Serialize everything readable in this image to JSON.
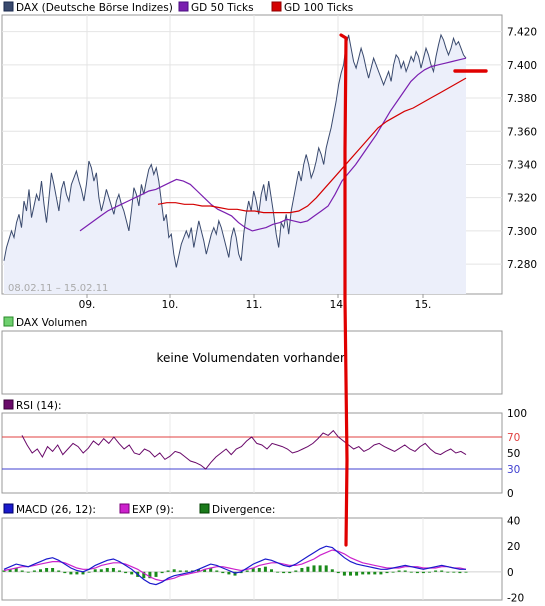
{
  "chart_data": [
    {
      "type": "line",
      "legend": [
        {
          "name": "DAX (Deutsche Börse Indizes)",
          "color": "#3a4a6e"
        },
        {
          "name": "GD 50 Ticks",
          "color": "#7a1fb0"
        },
        {
          "name": "GD 100 Ticks",
          "color": "#d40000"
        }
      ],
      "date_range": "08.02.11 – 15.02.11",
      "x_ticks": [
        "09.",
        "10.",
        "11.",
        "14.",
        "15."
      ],
      "y_ticks": [
        "7.420",
        "7.400",
        "7.380",
        "7.360",
        "7.340",
        "7.320",
        "7.300",
        "7.280"
      ],
      "ylim": [
        7262,
        7430
      ],
      "grid": true,
      "series": [
        {
          "name": "DAX (Deutsche Börse Indizes)",
          "values": [
            7282,
            7290,
            7295,
            7300,
            7296,
            7305,
            7310,
            7302,
            7318,
            7312,
            7325,
            7308,
            7315,
            7322,
            7318,
            7330,
            7316,
            7305,
            7320,
            7335,
            7328,
            7320,
            7312,
            7325,
            7330,
            7322,
            7318,
            7328,
            7332,
            7336,
            7330,
            7325,
            7318,
            7328,
            7342,
            7338,
            7330,
            7335,
            7320,
            7312,
            7318,
            7325,
            7320,
            7315,
            7310,
            7318,
            7322,
            7316,
            7312,
            7306,
            7300,
            7312,
            7326,
            7322,
            7315,
            7328,
            7322,
            7330,
            7337,
            7340,
            7334,
            7338,
            7330,
            7318,
            7306,
            7310,
            7296,
            7298,
            7286,
            7278,
            7285,
            7292,
            7296,
            7300,
            7296,
            7302,
            7290,
            7298,
            7306,
            7300,
            7294,
            7286,
            7292,
            7298,
            7302,
            7298,
            7306,
            7302,
            7296,
            7290,
            7284,
            7296,
            7302,
            7296,
            7286,
            7282,
            7298,
            7310,
            7318,
            7312,
            7324,
            7318,
            7310,
            7322,
            7328,
            7318,
            7330,
            7320,
            7310,
            7298,
            7290,
            7305,
            7302,
            7310,
            7298,
            7312,
            7320,
            7328,
            7336,
            7330,
            7340,
            7346,
            7340,
            7332,
            7336,
            7342,
            7350,
            7346,
            7340,
            7350,
            7356,
            7362,
            7370,
            7378,
            7388,
            7395,
            7400,
            7412,
            7418,
            7410,
            7402,
            7398,
            7404,
            7410,
            7405,
            7398,
            7392,
            7398,
            7404,
            7400,
            7396,
            7392,
            7388,
            7392,
            7396,
            7390,
            7400,
            7406,
            7404,
            7398,
            7402,
            7396,
            7400,
            7405,
            7402,
            7408,
            7405,
            7398,
            7404,
            7410,
            7406,
            7400,
            7396,
            7405,
            7412,
            7418,
            7415,
            7410,
            7406,
            7410,
            7416,
            7412,
            7414,
            7410,
            7406,
            7404
          ]
        },
        {
          "name": "GD 50 Ticks",
          "values": [
            7300,
            7303,
            7306,
            7309,
            7312,
            7314,
            7316,
            7318,
            7320,
            7322,
            7324,
            7325,
            7327,
            7329,
            7331,
            7330,
            7328,
            7324,
            7320,
            7316,
            7313,
            7311,
            7309,
            7305,
            7302,
            7300,
            7301,
            7302,
            7304,
            7305,
            7307,
            7306,
            7305,
            7306,
            7309,
            7312,
            7315,
            7322,
            7330,
            7335,
            7340,
            7346,
            7352,
            7358,
            7365,
            7372,
            7378,
            7384,
            7390,
            7394,
            7397,
            7399,
            7400,
            7401,
            7402,
            7403,
            7404
          ]
        },
        {
          "name": "GD 100 Ticks",
          "values": [
            7316,
            7317,
            7317,
            7316,
            7316,
            7315,
            7315,
            7314,
            7313,
            7313,
            7312,
            7312,
            7311,
            7311,
            7311,
            7311,
            7312,
            7315,
            7320,
            7326,
            7332,
            7338,
            7344,
            7350,
            7356,
            7362,
            7366,
            7369,
            7372,
            7374,
            7377,
            7380,
            7383,
            7386,
            7389,
            7392
          ]
        }
      ]
    },
    {
      "type": "bar",
      "legend": [
        {
          "name": "DAX Volumen",
          "color": "#3aa83a"
        }
      ],
      "message": "keine Volumendaten vorhanden"
    },
    {
      "type": "line",
      "legend": [
        {
          "name": "RSI (14):",
          "color": "#6a0a6a"
        }
      ],
      "y_ticks": [
        "100",
        "70",
        "50",
        "30",
        "0"
      ],
      "ylim": [
        0,
        100
      ],
      "levels": [
        70,
        30
      ],
      "series": [
        {
          "name": "RSI (14):",
          "values": [
            72,
            60,
            50,
            55,
            45,
            58,
            52,
            60,
            48,
            55,
            62,
            58,
            50,
            56,
            65,
            60,
            68,
            62,
            70,
            62,
            55,
            60,
            50,
            48,
            55,
            52,
            45,
            50,
            42,
            46,
            52,
            50,
            45,
            40,
            38,
            35,
            30,
            38,
            45,
            50,
            55,
            48,
            55,
            58,
            65,
            70,
            62,
            60,
            55,
            62,
            60,
            58,
            55,
            50,
            52,
            55,
            58,
            62,
            68,
            75,
            72,
            78,
            70,
            65,
            60,
            55,
            58,
            52,
            55,
            60,
            62,
            58,
            55,
            52,
            56,
            60,
            55,
            52,
            58,
            62,
            55,
            50,
            48,
            52,
            55,
            50,
            52,
            48
          ]
        }
      ]
    },
    {
      "type": "line",
      "legend": [
        {
          "name": "MACD (26, 12):",
          "color": "#1a1acc"
        },
        {
          "name": "EXP (9):",
          "color": "#cc22cc"
        },
        {
          "name": "Divergence:",
          "color": "#1a7a1a"
        }
      ],
      "y_ticks": [
        "40",
        "20",
        "0",
        "-20"
      ],
      "ylim": [
        -22,
        42
      ],
      "series": [
        {
          "name": "MACD (26, 12):",
          "values": [
            2,
            4,
            6,
            5,
            4,
            6,
            8,
            10,
            11,
            9,
            6,
            3,
            1,
            0,
            2,
            5,
            7,
            9,
            10,
            8,
            5,
            2,
            -2,
            -6,
            -9,
            -10,
            -8,
            -5,
            -3,
            -2,
            -1,
            0,
            2,
            4,
            6,
            5,
            3,
            1,
            -1,
            0,
            3,
            6,
            8,
            10,
            9,
            7,
            5,
            4,
            6,
            9,
            12,
            15,
            18,
            20,
            19,
            15,
            11,
            8,
            6,
            5,
            4,
            3,
            2,
            2,
            3,
            4,
            5,
            4,
            3,
            2,
            3,
            4,
            5,
            4,
            3,
            2,
            2
          ]
        },
        {
          "name": "EXP (9):",
          "values": [
            1,
            2,
            3,
            4,
            4,
            5,
            6,
            7,
            8,
            8,
            7,
            5,
            3,
            2,
            2,
            3,
            5,
            6,
            7,
            7,
            6,
            4,
            2,
            -1,
            -4,
            -6,
            -7,
            -6,
            -5,
            -3,
            -2,
            -1,
            0,
            2,
            3,
            4,
            4,
            3,
            2,
            1,
            2,
            3,
            5,
            6,
            7,
            7,
            6,
            5,
            5,
            6,
            8,
            10,
            13,
            15,
            17,
            16,
            14,
            11,
            9,
            7,
            6,
            5,
            4,
            3,
            3,
            3,
            4,
            4,
            4,
            3,
            3,
            3,
            4,
            4,
            3,
            3,
            2
          ]
        },
        {
          "name": "Divergence:",
          "values": [
            1,
            2,
            3,
            1,
            0,
            1,
            2,
            3,
            3,
            1,
            -1,
            -2,
            -2,
            -2,
            0,
            2,
            2,
            3,
            3,
            1,
            -1,
            -2,
            -4,
            -5,
            -5,
            -4,
            -1,
            1,
            2,
            1,
            1,
            1,
            2,
            2,
            3,
            1,
            -1,
            -2,
            -3,
            -1,
            1,
            3,
            3,
            4,
            2,
            0,
            -1,
            -1,
            1,
            3,
            4,
            5,
            5,
            5,
            2,
            -1,
            -3,
            -3,
            -3,
            -2,
            -2,
            -2,
            -2,
            -1,
            0,
            1,
            1,
            0,
            -1,
            -1,
            0,
            1,
            1,
            0,
            0,
            -1,
            0
          ]
        }
      ]
    }
  ]
}
